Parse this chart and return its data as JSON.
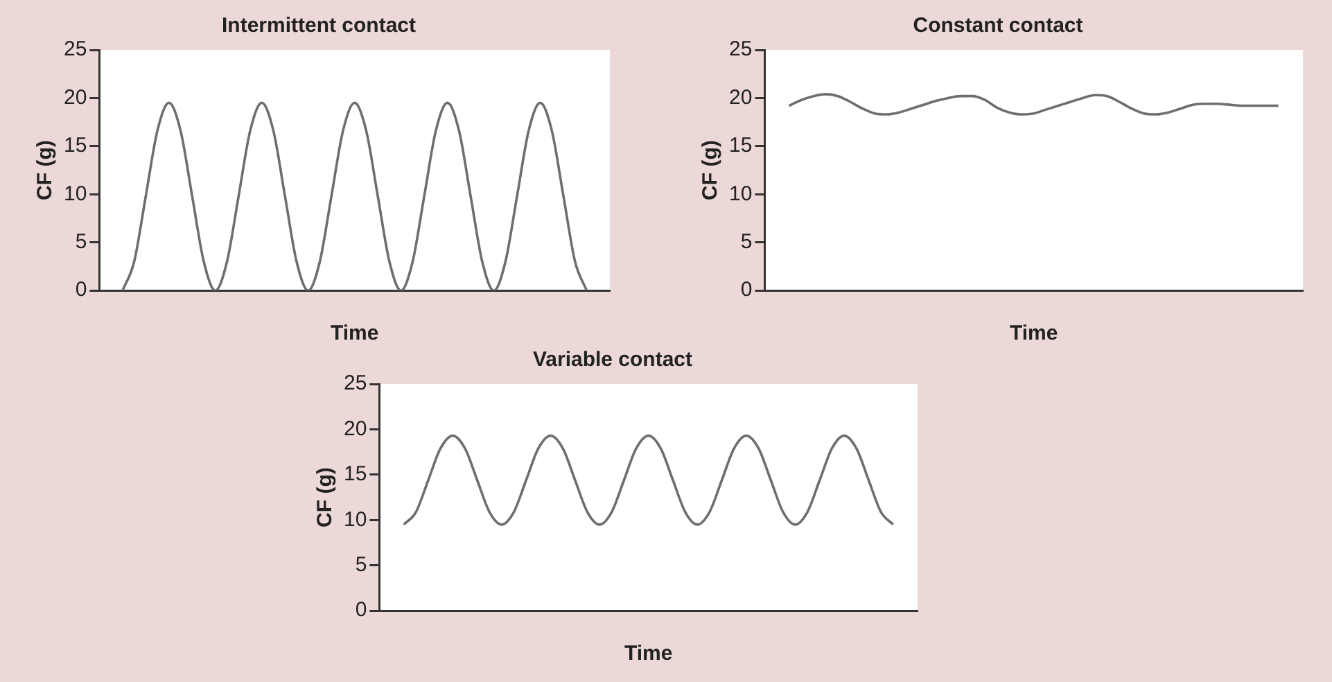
{
  "chart_data": [
    {
      "type": "line",
      "title": "Intermittent contact",
      "xlabel": "Time",
      "ylabel": "CF (g)",
      "categories": [
        null,
        null,
        null,
        null,
        null,
        null,
        null,
        null,
        null,
        null,
        null,
        null,
        null,
        null,
        null,
        null,
        null,
        null,
        null,
        null,
        null,
        null,
        null,
        null,
        null,
        null,
        null,
        null,
        null,
        null,
        null,
        null,
        null,
        null,
        null,
        null,
        null,
        null,
        null,
        null,
        null,
        null,
        null,
        null,
        null
      ],
      "series": [
        {
          "color": "#6e6e6e",
          "values": [
            null,
            null,
            0,
            3,
            9.8,
            16.6,
            19.5,
            16.6,
            9.8,
            3,
            0,
            3,
            9.8,
            16.6,
            19.5,
            16.6,
            9.8,
            3,
            0,
            3,
            9.8,
            16.6,
            19.5,
            16.6,
            9.8,
            3,
            0,
            3,
            9.8,
            16.6,
            19.5,
            16.6,
            9.8,
            3,
            0,
            3,
            9.8,
            16.6,
            19.5,
            16.6,
            9.8,
            3,
            0,
            null,
            null
          ]
        }
      ],
      "ylim": [
        0,
        25
      ],
      "yticks": [
        0,
        5,
        10,
        15,
        20,
        25
      ],
      "grid": false
    },
    {
      "type": "line",
      "title": "Constant contact",
      "xlabel": "Time",
      "ylabel": "CF (g)",
      "categories": [
        null,
        null,
        null,
        null,
        null,
        null,
        null,
        null,
        null,
        null,
        null,
        null,
        null,
        null,
        null,
        null,
        null,
        null,
        null,
        null,
        null,
        null,
        null,
        null,
        null,
        null,
        null,
        null,
        null,
        null,
        null,
        null,
        null,
        null,
        null,
        null,
        null,
        null,
        null,
        null,
        null,
        null,
        null,
        null,
        null
      ],
      "series": [
        {
          "color": "#6e6e6e",
          "values": [
            null,
            null,
            19.2,
            19.8,
            20.2,
            20.4,
            20.2,
            19.6,
            18.9,
            18.4,
            18.3,
            18.5,
            18.9,
            19.3,
            19.7,
            20,
            20.2,
            20.2,
            19.8,
            19,
            18.5,
            18.3,
            18.4,
            18.8,
            19.2,
            19.6,
            20,
            20.3,
            20.2,
            19.6,
            18.9,
            18.4,
            18.3,
            18.5,
            18.9,
            19.3,
            19.4,
            19.4,
            19.3,
            19.2,
            19.2,
            19.2,
            19.2,
            null,
            null
          ]
        }
      ],
      "ylim": [
        0,
        25
      ],
      "yticks": [
        0,
        5,
        10,
        15,
        20,
        25
      ],
      "grid": false
    },
    {
      "type": "line",
      "title": "Variable contact",
      "xlabel": "Time",
      "ylabel": "CF (g)",
      "categories": [
        null,
        null,
        null,
        null,
        null,
        null,
        null,
        null,
        null,
        null,
        null,
        null,
        null,
        null,
        null,
        null,
        null,
        null,
        null,
        null,
        null,
        null,
        null,
        null,
        null,
        null,
        null,
        null,
        null,
        null,
        null,
        null,
        null,
        null,
        null,
        null,
        null,
        null,
        null,
        null,
        null,
        null,
        null,
        null,
        null
      ],
      "series": [
        {
          "color": "#6e6e6e",
          "values": [
            null,
            null,
            9.5,
            10.9,
            14.4,
            17.9,
            19.3,
            17.9,
            14.4,
            10.9,
            9.5,
            10.9,
            14.4,
            17.9,
            19.3,
            17.9,
            14.4,
            10.9,
            9.5,
            10.9,
            14.4,
            17.9,
            19.3,
            17.9,
            14.4,
            10.9,
            9.5,
            10.9,
            14.4,
            17.9,
            19.3,
            17.9,
            14.4,
            10.9,
            9.5,
            10.9,
            14.4,
            17.9,
            19.3,
            17.9,
            14.4,
            10.9,
            9.5,
            null,
            null
          ]
        }
      ],
      "ylim": [
        0,
        25
      ],
      "yticks": [
        0,
        5,
        10,
        15,
        20,
        25
      ],
      "grid": false
    }
  ]
}
